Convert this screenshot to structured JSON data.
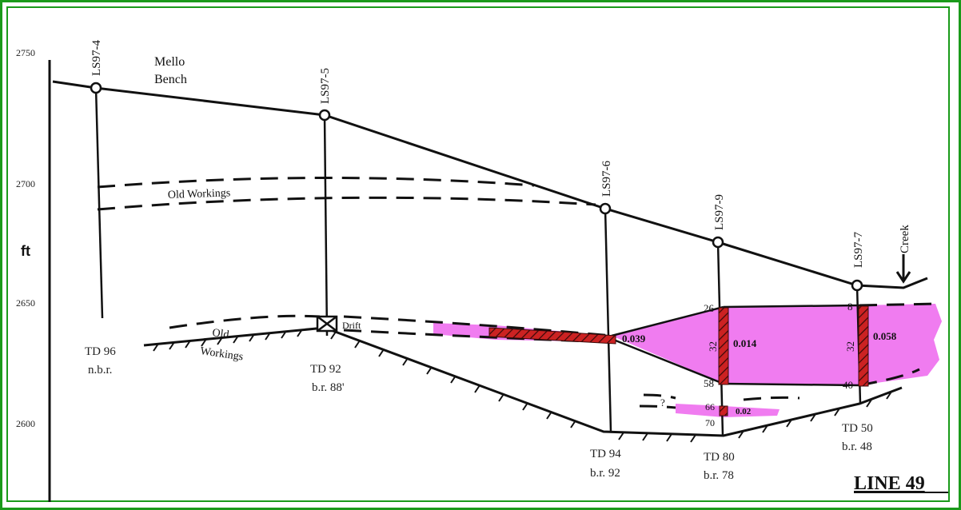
{
  "title": "LINE 49",
  "axis": {
    "unit": "ft",
    "ticks": [
      "2750",
      "2700",
      "2650",
      "2600"
    ]
  },
  "labels": {
    "mello_line1": "Mello",
    "mello_line2": "Bench",
    "old_workings_upper": "Old Workings",
    "old_workings_lower_1": "Old",
    "old_workings_lower_2": "Workings",
    "drift": "Drift",
    "creek": "Creek",
    "question": "?"
  },
  "holes": [
    {
      "id": "LS97-4",
      "td": "TD 96",
      "note": "n.b.r."
    },
    {
      "id": "LS97-5",
      "td": "TD 92",
      "note": "b.r. 88'"
    },
    {
      "id": "LS97-6",
      "td": "TD 94",
      "note": "b.r. 92"
    },
    {
      "id": "LS97-9",
      "td": "TD 80",
      "note": "b.r. 78"
    },
    {
      "id": "LS97-7",
      "td": "TD 50",
      "note": "b.r. 48"
    }
  ],
  "grades": {
    "g1": "0.039",
    "g2": "0.014",
    "g3": "0.058",
    "g4": "0.02"
  },
  "intervals": {
    "h9_top": "26",
    "h9_len": "32",
    "h9_bot": "58",
    "h9_lower_top": "66",
    "h9_lower_bot": "70",
    "h7_top": "8",
    "h7_len": "32",
    "h7_bot": "40"
  },
  "colors": {
    "frame": "#1a9a1a",
    "zone": "#f07cf0",
    "assay": "#cc2222"
  }
}
